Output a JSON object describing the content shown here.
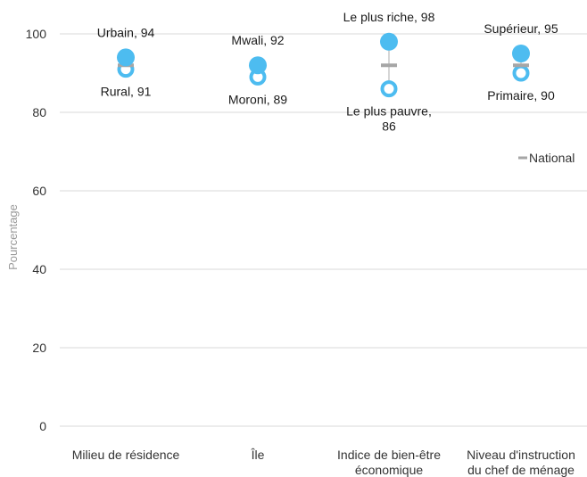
{
  "chart_data": {
    "type": "scatter",
    "ylabel": "Pourcentage",
    "ylim": [
      0,
      100
    ],
    "yticks": [
      "0",
      "20",
      "40",
      "60",
      "80",
      "100"
    ],
    "grid": true,
    "legend_position": "right",
    "colors": {
      "high": "#4dbcf0",
      "low": "#4dbcf0",
      "national": "#a6a6a6",
      "grid": "#d9d9d9"
    },
    "categories": [
      [
        "Milieu de résidence"
      ],
      [
        "Île"
      ],
      [
        "Indice de bien-être",
        "économique"
      ],
      [
        "Niveau d'instruction",
        "du chef de ménage"
      ]
    ],
    "series": [
      {
        "role": "high",
        "values": [
          94,
          92,
          98,
          95
        ],
        "labels": [
          [
            "Urbain, 94"
          ],
          [
            "Mwali, 92"
          ],
          [
            "Le plus riche, 98"
          ],
          [
            "Supérieur, 95"
          ]
        ]
      },
      {
        "role": "low",
        "values": [
          91,
          89,
          86,
          90
        ],
        "labels": [
          [
            "Rural, 91"
          ],
          [
            "Moroni, 89"
          ],
          [
            "Le plus pauvre,",
            "86"
          ],
          [
            "Primaire, 90"
          ]
        ]
      },
      {
        "role": "national",
        "name": "National",
        "values": [
          92,
          92,
          92,
          92
        ]
      }
    ]
  }
}
